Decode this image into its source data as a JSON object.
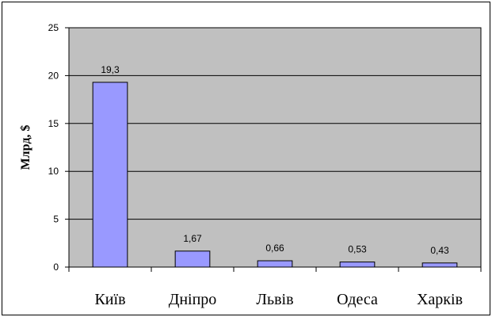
{
  "chart_data": {
    "type": "bar",
    "categories": [
      "Київ",
      "Дніпро",
      "Львів",
      "Одеса",
      "Харків"
    ],
    "values": [
      19.3,
      1.67,
      0.66,
      0.53,
      0.43
    ],
    "value_labels": [
      "19,3",
      "1,67",
      "0,66",
      "0,53",
      "0,43"
    ],
    "ylabel": "Млрд, $",
    "ylim": [
      0,
      25
    ],
    "yticks": [
      0,
      5,
      10,
      15,
      20,
      25
    ],
    "grid": true,
    "legend": "none",
    "colors": {
      "plot_background": "#c0c0c0",
      "bar_fill": "#9999ff",
      "bar_stroke": "#000000",
      "gridline": "#000000"
    }
  }
}
